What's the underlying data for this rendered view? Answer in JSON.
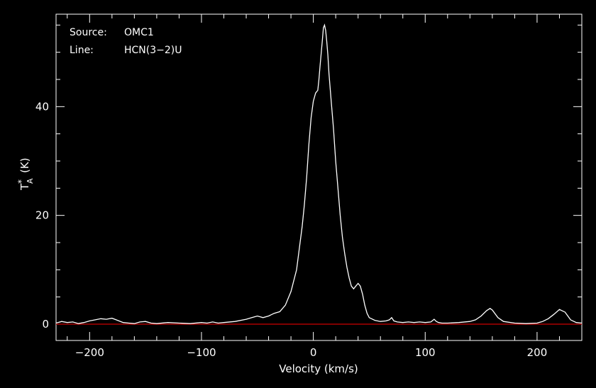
{
  "annotations": {
    "source_label": "Source:",
    "source_value": "OMC1",
    "line_label": "Line:",
    "line_value": "HCN(3−2)U"
  },
  "colors": {
    "background": "#000000",
    "axes": "#ffffff",
    "spectrum": "#ffffff",
    "baseline": "#cc0000"
  },
  "chart_data": {
    "type": "line",
    "title": "",
    "xlabel": "Velocity (km/s)",
    "ylabel_main": "T",
    "ylabel_sup": "*",
    "ylabel_sub": "A",
    "ylabel_unit": "(K)",
    "xlim": [
      -230,
      240
    ],
    "ylim": [
      -3,
      57
    ],
    "x_ticks": [
      {
        "value": -200,
        "label": "−200"
      },
      {
        "value": -100,
        "label": "−100"
      },
      {
        "value": 0,
        "label": "0"
      },
      {
        "value": 100,
        "label": "100"
      },
      {
        "value": 200,
        "label": "200"
      }
    ],
    "y_ticks": [
      {
        "value": 0,
        "label": "0"
      },
      {
        "value": 20,
        "label": "20"
      },
      {
        "value": 40,
        "label": "40"
      }
    ],
    "grid": false,
    "baseline": {
      "y": 0
    },
    "series": [
      {
        "x": [
          -230,
          -225,
          -220,
          -215,
          -210,
          -205,
          -200,
          -195,
          -190,
          -185,
          -180,
          -175,
          -170,
          -165,
          -160,
          -155,
          -150,
          -145,
          -140,
          -130,
          -120,
          -110,
          -100,
          -95,
          -90,
          -85,
          -80,
          -70,
          -60,
          -55,
          -50,
          -45,
          -40,
          -35,
          -30,
          -25,
          -20,
          -15,
          -10,
          -8,
          -6,
          -4,
          -2,
          0,
          2,
          4,
          5,
          6,
          8,
          9,
          10,
          11,
          12,
          13,
          14,
          16,
          18,
          20,
          22,
          24,
          26,
          28,
          30,
          32,
          34,
          36,
          38,
          40,
          42,
          44,
          46,
          48,
          50,
          55,
          60,
          65,
          68,
          70,
          72,
          75,
          80,
          85,
          90,
          95,
          100,
          105,
          108,
          110,
          112,
          115,
          120,
          130,
          140,
          145,
          150,
          155,
          158,
          160,
          165,
          170,
          180,
          190,
          200,
          205,
          210,
          215,
          220,
          225,
          230,
          235,
          240
        ],
        "values": [
          0.2,
          0.5,
          0.3,
          0.4,
          0.1,
          0.3,
          0.6,
          0.8,
          1.0,
          0.9,
          1.1,
          0.7,
          0.3,
          0.2,
          0.1,
          0.4,
          0.5,
          0.2,
          0.1,
          0.3,
          0.2,
          0.1,
          0.3,
          0.2,
          0.4,
          0.2,
          0.3,
          0.5,
          0.9,
          1.2,
          1.5,
          1.2,
          1.5,
          2.0,
          2.3,
          3.5,
          6.0,
          10.0,
          18.0,
          22.0,
          27.0,
          33.0,
          38.0,
          41.0,
          42.5,
          43.0,
          45.0,
          47.5,
          52.0,
          54.5,
          55.0,
          54.0,
          52.0,
          49.5,
          46.0,
          41.0,
          36.0,
          30.0,
          25.0,
          20.0,
          16.0,
          13.0,
          10.5,
          8.5,
          7.0,
          6.5,
          7.0,
          7.5,
          7.0,
          5.5,
          3.5,
          2.0,
          1.2,
          0.7,
          0.5,
          0.6,
          0.8,
          1.2,
          0.6,
          0.4,
          0.3,
          0.4,
          0.3,
          0.4,
          0.3,
          0.4,
          0.9,
          0.5,
          0.3,
          0.2,
          0.2,
          0.3,
          0.5,
          0.8,
          1.5,
          2.5,
          2.9,
          2.6,
          1.2,
          0.5,
          0.2,
          0.1,
          0.2,
          0.5,
          1.0,
          1.8,
          2.7,
          2.2,
          0.8,
          0.3,
          0.2
        ]
      }
    ]
  }
}
